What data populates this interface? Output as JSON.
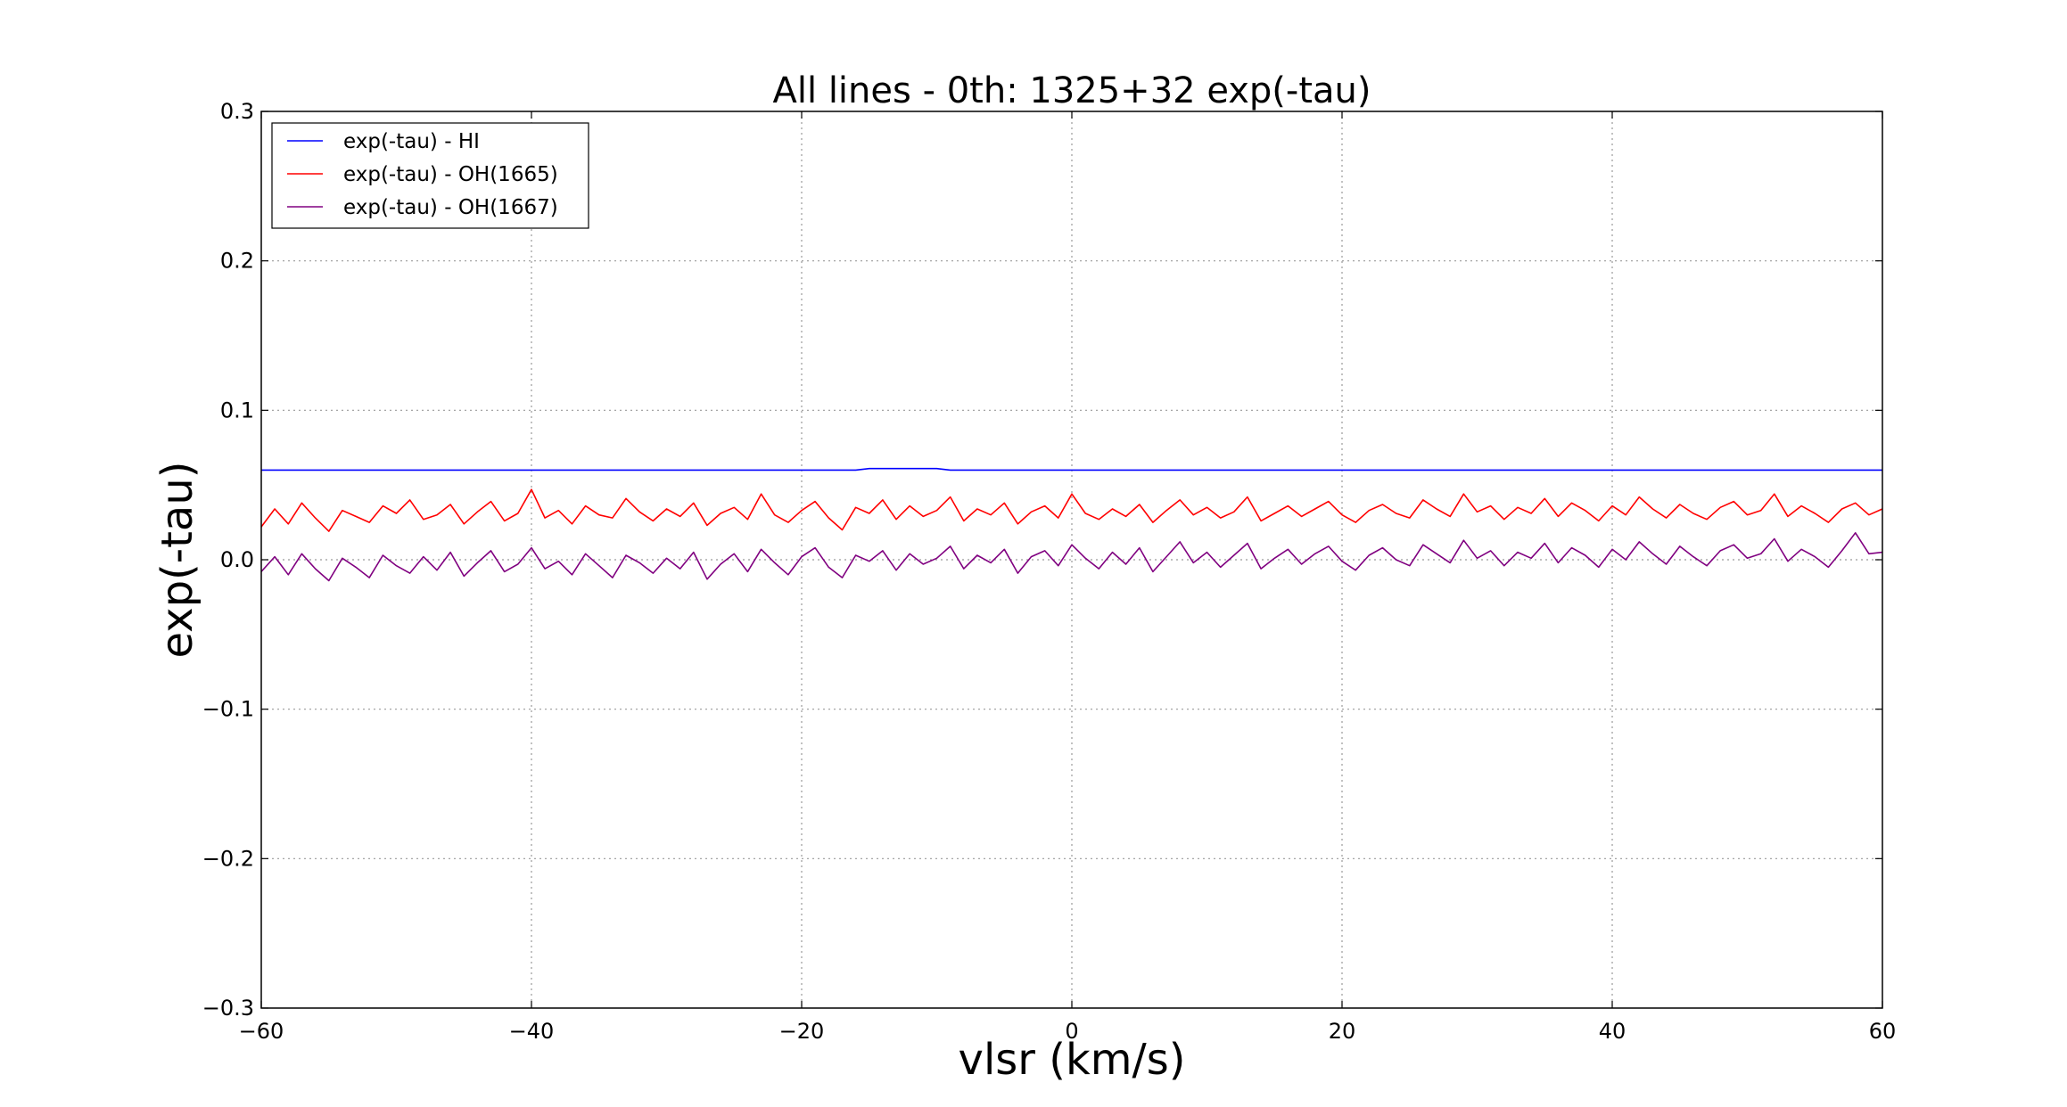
{
  "chart_data": {
    "type": "line",
    "title": "All lines - 0th: 1325+32  exp(-tau)",
    "xlabel": "vlsr (km/s)",
    "ylabel": "exp(-tau)",
    "xlim": [
      -60,
      60
    ],
    "ylim": [
      -0.3,
      0.3
    ],
    "grid": true,
    "legend_position": "top-left",
    "xticks": [
      -60,
      -40,
      -20,
      0,
      20,
      40,
      60
    ],
    "xtick_labels": [
      "−60",
      "−40",
      "−20",
      "0",
      "20",
      "40",
      "60"
    ],
    "yticks": [
      -0.3,
      -0.2,
      -0.1,
      0.0,
      0.1,
      0.2,
      0.3
    ],
    "ytick_labels": [
      "−0.3",
      "−0.2",
      "−0.1",
      "0.0",
      "0.1",
      "0.2",
      "0.3"
    ],
    "series": [
      {
        "name": "exp(-tau) - HI",
        "color": "#0000ff",
        "x_range": [
          -60,
          60
        ],
        "values": [
          0.06,
          0.06,
          0.06,
          0.06,
          0.06,
          0.06,
          0.06,
          0.06,
          0.06,
          0.06,
          0.06,
          0.06,
          0.06,
          0.06,
          0.06,
          0.06,
          0.06,
          0.06,
          0.06,
          0.06,
          0.06,
          0.06,
          0.06,
          0.06,
          0.06,
          0.06,
          0.06,
          0.06,
          0.06,
          0.06,
          0.06,
          0.06,
          0.06,
          0.06,
          0.06,
          0.06,
          0.06,
          0.06,
          0.06,
          0.06,
          0.06,
          0.06,
          0.06,
          0.06,
          0.06,
          0.061,
          0.061,
          0.061,
          0.061,
          0.061,
          0.061,
          0.06,
          0.06,
          0.06,
          0.06,
          0.06,
          0.06,
          0.06,
          0.06,
          0.06,
          0.06,
          0.06,
          0.06,
          0.06,
          0.06,
          0.06,
          0.06,
          0.06,
          0.06,
          0.06,
          0.06,
          0.06,
          0.06,
          0.06,
          0.06,
          0.06,
          0.06,
          0.06,
          0.06,
          0.06,
          0.06,
          0.06,
          0.06,
          0.06,
          0.06,
          0.06,
          0.06,
          0.06,
          0.06,
          0.06,
          0.06,
          0.06,
          0.06,
          0.06,
          0.06,
          0.06,
          0.06,
          0.06,
          0.06,
          0.06,
          0.06,
          0.06,
          0.06,
          0.06,
          0.06,
          0.06,
          0.06,
          0.06,
          0.06,
          0.06,
          0.06,
          0.06,
          0.06,
          0.06,
          0.06,
          0.06,
          0.06,
          0.06,
          0.06,
          0.06,
          0.06
        ]
      },
      {
        "name": "exp(-tau) - OH(1665)",
        "color": "#ff0000",
        "x_range": [
          -60,
          60
        ],
        "values": [
          0.022,
          0.034,
          0.024,
          0.038,
          0.028,
          0.019,
          0.033,
          0.029,
          0.025,
          0.036,
          0.031,
          0.04,
          0.027,
          0.03,
          0.037,
          0.024,
          0.032,
          0.039,
          0.026,
          0.031,
          0.047,
          0.028,
          0.033,
          0.024,
          0.036,
          0.03,
          0.028,
          0.041,
          0.032,
          0.026,
          0.034,
          0.029,
          0.038,
          0.023,
          0.031,
          0.035,
          0.027,
          0.044,
          0.03,
          0.025,
          0.033,
          0.039,
          0.028,
          0.02,
          0.035,
          0.031,
          0.04,
          0.027,
          0.036,
          0.029,
          0.033,
          0.042,
          0.026,
          0.034,
          0.03,
          0.038,
          0.024,
          0.032,
          0.036,
          0.028,
          0.044,
          0.031,
          0.027,
          0.034,
          0.029,
          0.037,
          0.025,
          0.033,
          0.04,
          0.03,
          0.035,
          0.028,
          0.032,
          0.042,
          0.026,
          0.031,
          0.036,
          0.029,
          0.034,
          0.039,
          0.03,
          0.025,
          0.033,
          0.037,
          0.031,
          0.028,
          0.04,
          0.034,
          0.029,
          0.044,
          0.032,
          0.036,
          0.027,
          0.035,
          0.031,
          0.041,
          0.029,
          0.038,
          0.033,
          0.026,
          0.036,
          0.03,
          0.042,
          0.034,
          0.028,
          0.037,
          0.031,
          0.027,
          0.035,
          0.039,
          0.03,
          0.033,
          0.044,
          0.029,
          0.036,
          0.031,
          0.025,
          0.034,
          0.038,
          0.03,
          0.034
        ]
      },
      {
        "name": "exp(-tau) - OH(1667)",
        "color": "#800080",
        "x_range": [
          -60,
          60
        ],
        "values": [
          -0.008,
          0.002,
          -0.01,
          0.004,
          -0.006,
          -0.014,
          0.001,
          -0.005,
          -0.012,
          0.003,
          -0.004,
          -0.009,
          0.002,
          -0.007,
          0.005,
          -0.011,
          -0.002,
          0.006,
          -0.008,
          -0.003,
          0.008,
          -0.006,
          -0.001,
          -0.01,
          0.004,
          -0.004,
          -0.012,
          0.003,
          -0.002,
          -0.009,
          0.001,
          -0.006,
          0.005,
          -0.013,
          -0.003,
          0.004,
          -0.008,
          0.007,
          -0.002,
          -0.01,
          0.002,
          0.008,
          -0.005,
          -0.012,
          0.003,
          -0.001,
          0.006,
          -0.007,
          0.004,
          -0.003,
          0.001,
          0.009,
          -0.006,
          0.003,
          -0.002,
          0.007,
          -0.009,
          0.002,
          0.006,
          -0.004,
          0.01,
          0.001,
          -0.006,
          0.005,
          -0.003,
          0.008,
          -0.008,
          0.002,
          0.012,
          -0.002,
          0.005,
          -0.005,
          0.003,
          0.011,
          -0.006,
          0.001,
          0.007,
          -0.003,
          0.004,
          0.009,
          -0.001,
          -0.007,
          0.003,
          0.008,
          0.0,
          -0.004,
          0.01,
          0.004,
          -0.002,
          0.013,
          0.001,
          0.006,
          -0.004,
          0.005,
          0.001,
          0.011,
          -0.002,
          0.008,
          0.003,
          -0.005,
          0.007,
          0.0,
          0.012,
          0.004,
          -0.003,
          0.009,
          0.002,
          -0.004,
          0.006,
          0.01,
          0.001,
          0.004,
          0.014,
          -0.001,
          0.007,
          0.002,
          -0.005,
          0.006,
          0.018,
          0.004,
          0.005
        ]
      }
    ]
  }
}
